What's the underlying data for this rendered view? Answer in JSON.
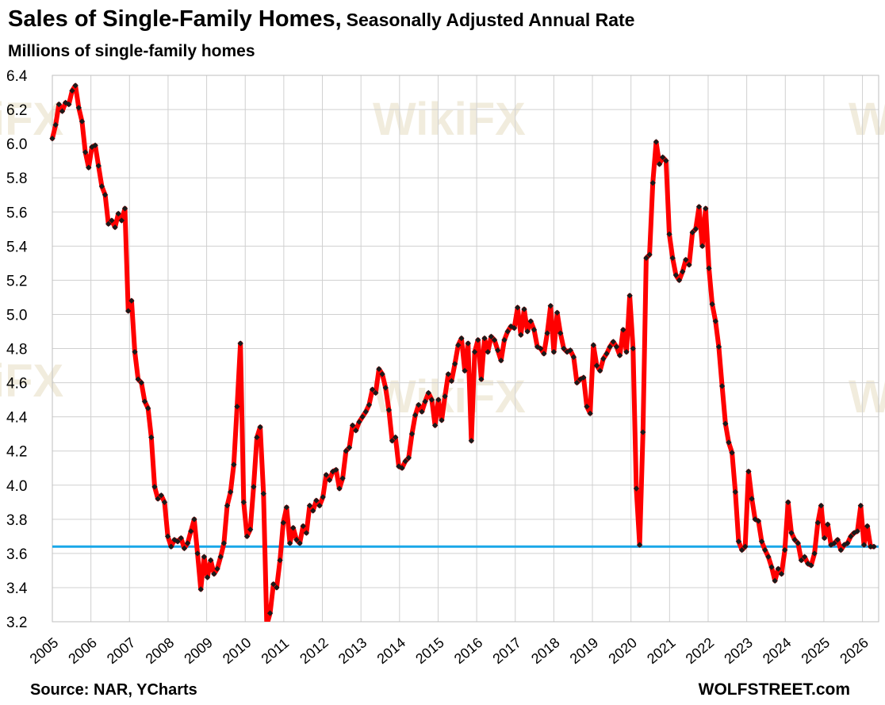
{
  "chart_data": {
    "type": "line",
    "title": "Sales of Single-Family Homes,",
    "subtitle": "Seasonally Adjusted Annual Rate",
    "xlabel": "",
    "ylabel": "Millions of single-family homes",
    "ylim": [
      3.2,
      6.4
    ],
    "yticks": [
      "3.2",
      "3.4",
      "3.6",
      "3.8",
      "4.0",
      "4.2",
      "4.4",
      "4.6",
      "4.8",
      "5.0",
      "5.2",
      "5.4",
      "5.6",
      "5.8",
      "6.0",
      "6.2",
      "6.4"
    ],
    "x_start_year": 2005,
    "xticks": [
      "2005",
      "2006",
      "2007",
      "2008",
      "2009",
      "2010",
      "2011",
      "2012",
      "2013",
      "2014",
      "2015",
      "2016",
      "2017",
      "2018",
      "2019",
      "2020",
      "2021",
      "2022",
      "2023",
      "2024",
      "2025",
      "2026"
    ],
    "grid": true,
    "series": [
      {
        "color": "#ff0000",
        "marker_color": "#1a1a1a",
        "values": [
          6.03,
          6.11,
          6.23,
          6.19,
          6.24,
          6.23,
          6.31,
          6.34,
          6.21,
          6.13,
          5.95,
          5.86,
          5.98,
          5.99,
          5.87,
          5.75,
          5.7,
          5.53,
          5.55,
          5.51,
          5.59,
          5.55,
          5.62,
          5.02,
          5.08,
          4.78,
          4.62,
          4.6,
          4.49,
          4.45,
          4.28,
          3.99,
          3.92,
          3.94,
          3.9,
          3.7,
          3.64,
          3.68,
          3.67,
          3.69,
          3.63,
          3.66,
          3.73,
          3.8,
          3.6,
          3.39,
          3.58,
          3.46,
          3.56,
          3.48,
          3.51,
          3.58,
          3.66,
          3.88,
          3.96,
          4.12,
          4.46,
          4.83,
          3.9,
          3.7,
          3.74,
          3.99,
          4.28,
          4.34,
          3.95,
          3.18,
          3.25,
          3.42,
          3.4,
          3.56,
          3.78,
          3.87,
          3.66,
          3.75,
          3.68,
          3.66,
          3.76,
          3.72,
          3.88,
          3.85,
          3.91,
          3.88,
          3.93,
          4.06,
          4.03,
          4.08,
          4.09,
          3.98,
          4.04,
          4.2,
          4.22,
          4.35,
          4.32,
          4.37,
          4.4,
          4.43,
          4.47,
          4.56,
          4.54,
          4.68,
          4.65,
          4.57,
          4.44,
          4.26,
          4.28,
          4.11,
          4.1,
          4.14,
          4.16,
          4.3,
          4.41,
          4.47,
          4.43,
          4.49,
          4.54,
          4.5,
          4.35,
          4.5,
          4.38,
          4.52,
          4.65,
          4.61,
          4.71,
          4.82,
          4.86,
          4.67,
          4.83,
          4.26,
          4.78,
          4.85,
          4.62,
          4.86,
          4.78,
          4.87,
          4.85,
          4.79,
          4.73,
          4.85,
          4.9,
          4.93,
          4.92,
          5.04,
          4.88,
          5.03,
          4.9,
          4.96,
          4.91,
          4.81,
          4.8,
          4.77,
          4.89,
          5.05,
          4.78,
          5.01,
          4.89,
          4.8,
          4.78,
          4.79,
          4.75,
          4.6,
          4.62,
          4.63,
          4.46,
          4.42,
          4.82,
          4.7,
          4.67,
          4.74,
          4.77,
          4.81,
          4.84,
          4.81,
          4.76,
          4.91,
          4.78,
          5.11,
          4.8,
          3.98,
          3.65,
          4.31,
          5.33,
          5.35,
          5.77,
          6.01,
          5.88,
          5.92,
          5.9,
          5.47,
          5.33,
          5.23,
          5.2,
          5.25,
          5.32,
          5.29,
          5.48,
          5.5,
          5.63,
          5.4,
          5.62,
          5.27,
          5.06,
          4.96,
          4.81,
          4.58,
          4.36,
          4.25,
          4.19,
          3.96,
          3.67,
          3.62,
          3.64,
          4.08,
          3.92,
          3.8,
          3.79,
          3.67,
          3.62,
          3.58,
          3.52,
          3.44,
          3.51,
          3.48,
          3.62,
          3.9,
          3.72,
          3.68,
          3.66,
          3.56,
          3.58,
          3.54,
          3.53,
          3.6,
          3.78,
          3.88,
          3.69,
          3.77,
          3.65,
          3.66,
          3.68,
          3.62,
          3.65,
          3.66,
          3.7,
          3.72,
          3.73,
          3.88,
          3.65,
          3.76,
          3.64,
          3.64
        ]
      }
    ],
    "reference_line": {
      "y": 3.64,
      "color": "#1aa7e8"
    },
    "source": "Source: NAR, YCharts",
    "credit": "WOLFSTREET.com"
  }
}
